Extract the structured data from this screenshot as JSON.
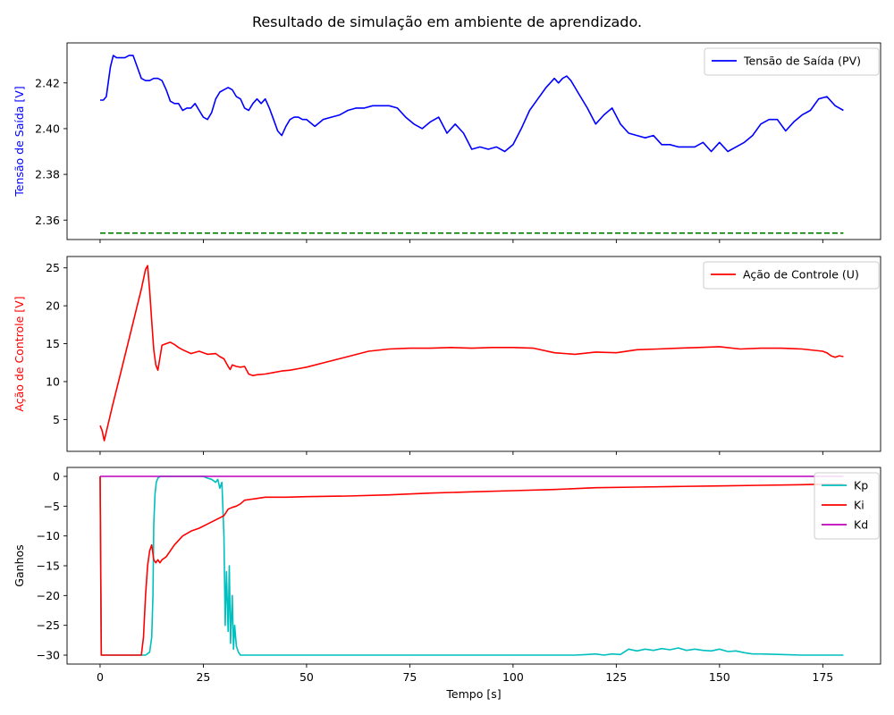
{
  "title": "Resultado de simulação em ambiente de aprendizado.",
  "chart_data": [
    {
      "type": "line",
      "xlabel": "",
      "ylabel": "Tensão de Saída [V]",
      "ylabel_color": "#0000ff",
      "xlim": [
        -8,
        189
      ],
      "ylim": [
        2.3515,
        2.4375
      ],
      "xticks": [
        0,
        25,
        50,
        75,
        100,
        125,
        150,
        175
      ],
      "xtick_labels_visible": false,
      "yticks": [
        2.36,
        2.38,
        2.4,
        2.42
      ],
      "ytick_labels": [
        "2.36",
        "2.38",
        "2.40",
        "2.42"
      ],
      "legend_position": "top-right",
      "series": [
        {
          "name": "Tensão de Saída (PV)",
          "color": "#0000ff",
          "dash": "solid",
          "in_legend": true,
          "x": [
            0,
            0.8,
            1.5,
            2.5,
            3.2,
            4,
            5,
            6,
            7,
            8,
            9,
            10,
            11,
            12,
            13,
            14,
            15,
            16,
            17,
            18,
            19,
            20,
            21,
            22,
            23,
            24,
            25,
            26,
            27,
            28,
            29,
            30,
            31,
            32,
            33,
            34,
            35,
            36,
            37,
            38,
            39,
            40,
            41,
            42,
            43,
            44,
            45,
            46,
            47,
            48,
            49,
            50,
            52,
            54,
            56,
            58,
            60,
            62,
            64,
            66,
            68,
            70,
            72,
            74,
            76,
            78,
            80,
            82,
            84,
            86,
            88,
            90,
            92,
            94,
            96,
            98,
            100,
            102,
            104,
            106,
            108,
            110,
            111,
            112,
            113,
            114,
            115,
            116,
            118,
            120,
            122,
            124,
            126,
            128,
            130,
            132,
            134,
            136,
            138,
            140,
            142,
            144,
            146,
            148,
            150,
            152,
            154,
            156,
            158,
            160,
            162,
            164,
            166,
            168,
            170,
            172,
            174,
            176,
            178,
            180
          ],
          "y": [
            2.4125,
            2.4125,
            2.414,
            2.427,
            2.432,
            2.431,
            2.431,
            2.431,
            2.432,
            2.432,
            2.427,
            2.422,
            2.421,
            2.421,
            2.422,
            2.422,
            2.421,
            2.417,
            2.412,
            2.411,
            2.411,
            2.408,
            2.409,
            2.409,
            2.411,
            2.408,
            2.405,
            2.404,
            2.407,
            2.413,
            2.416,
            2.417,
            2.418,
            2.417,
            2.414,
            2.413,
            2.409,
            2.408,
            2.411,
            2.413,
            2.411,
            2.413,
            2.409,
            2.404,
            2.399,
            2.397,
            2.401,
            2.404,
            2.405,
            2.405,
            2.404,
            2.404,
            2.401,
            2.404,
            2.405,
            2.406,
            2.408,
            2.409,
            2.409,
            2.41,
            2.41,
            2.41,
            2.409,
            2.405,
            2.402,
            2.4,
            2.403,
            2.405,
            2.398,
            2.402,
            2.398,
            2.391,
            2.392,
            2.391,
            2.392,
            2.39,
            2.393,
            2.4,
            2.408,
            2.413,
            2.418,
            2.422,
            2.42,
            2.422,
            2.423,
            2.421,
            2.418,
            2.415,
            2.409,
            2.402,
            2.406,
            2.409,
            2.402,
            2.398,
            2.397,
            2.396,
            2.397,
            2.393,
            2.393,
            2.392,
            2.392,
            2.392,
            2.394,
            2.39,
            2.394,
            2.39,
            2.392,
            2.394,
            2.397,
            2.402,
            2.404,
            2.404,
            2.399,
            2.403,
            2.406,
            2.408,
            2.413,
            2.414,
            2.41,
            2.408
          ]
        },
        {
          "name": "",
          "color": "#008000",
          "dash": "dashed",
          "in_legend": false,
          "x": [
            0,
            180
          ],
          "y": [
            2.3543,
            2.3543
          ]
        }
      ]
    },
    {
      "type": "line",
      "xlabel": "",
      "ylabel": "Ação de Controle [V]",
      "ylabel_color": "#ff0000",
      "xlim": [
        -8,
        189
      ],
      "ylim": [
        0.8,
        26.5
      ],
      "xticks": [
        0,
        25,
        50,
        75,
        100,
        125,
        150,
        175
      ],
      "xtick_labels_visible": false,
      "yticks": [
        5,
        10,
        15,
        20,
        25
      ],
      "ytick_labels": [
        "5",
        "10",
        "15",
        "20",
        "25"
      ],
      "legend_position": "top-right",
      "series": [
        {
          "name": "Ação de Controle (U)",
          "color": "#ff0000",
          "dash": "solid",
          "in_legend": true,
          "x": [
            0,
            0.5,
            1,
            3,
            5,
            7,
            9,
            10,
            11,
            11.5,
            12,
            12.5,
            13,
            13.5,
            14,
            15,
            16,
            17,
            18,
            19,
            20,
            22,
            24,
            26,
            28,
            29,
            30,
            31,
            31.5,
            32,
            33,
            34,
            35,
            36,
            37,
            38,
            40,
            42,
            44,
            46,
            48,
            50,
            55,
            60,
            65,
            70,
            75,
            80,
            85,
            90,
            95,
            100,
            105,
            110,
            115,
            120,
            125,
            130,
            135,
            140,
            145,
            150,
            155,
            160,
            165,
            170,
            175,
            176,
            177,
            178,
            179,
            180
          ],
          "y": [
            4.2,
            3.5,
            2.2,
            6.8,
            11.2,
            15.6,
            20.0,
            22.2,
            24.8,
            25.3,
            22.0,
            18.0,
            14.2,
            12.2,
            11.5,
            14.8,
            15.0,
            15.2,
            14.9,
            14.5,
            14.2,
            13.7,
            14.0,
            13.6,
            13.7,
            13.3,
            13.0,
            12.0,
            11.6,
            12.2,
            12.0,
            11.9,
            12.0,
            11.0,
            10.8,
            10.9,
            11.0,
            11.2,
            11.4,
            11.5,
            11.7,
            11.9,
            12.6,
            13.3,
            14.0,
            14.3,
            14.4,
            14.4,
            14.5,
            14.4,
            14.5,
            14.5,
            14.4,
            13.8,
            13.6,
            13.9,
            13.8,
            14.2,
            14.3,
            14.4,
            14.5,
            14.6,
            14.3,
            14.4,
            14.4,
            14.3,
            14.0,
            13.8,
            13.4,
            13.2,
            13.4,
            13.3
          ]
        }
      ]
    },
    {
      "type": "line",
      "xlabel": "Tempo [s]",
      "ylabel": "Ganhos",
      "ylabel_color": "#000000",
      "xlim": [
        -8,
        189
      ],
      "ylim": [
        -31.5,
        1.5
      ],
      "xticks": [
        0,
        25,
        50,
        75,
        100,
        125,
        150,
        175
      ],
      "xtick_labels": [
        "0",
        "25",
        "50",
        "75",
        "100",
        "125",
        "150",
        "175"
      ],
      "xtick_labels_visible": true,
      "yticks": [
        -30,
        -25,
        -20,
        -15,
        -10,
        -5,
        0
      ],
      "ytick_labels": [
        "−30",
        "−25",
        "−20",
        "−15",
        "−10",
        "−5",
        "0"
      ],
      "legend_position": "top-right",
      "series": [
        {
          "name": "Kp",
          "color": "#00bfbf",
          "dash": "solid",
          "in_legend": true,
          "x": [
            0,
            0.3,
            0.6,
            5,
            10,
            11,
            12,
            12.5,
            12.8,
            13,
            13.3,
            13.6,
            14,
            14.5,
            15,
            20,
            25,
            26,
            27,
            28,
            28.5,
            29,
            29.5,
            30,
            30.3,
            30.6,
            31,
            31.3,
            31.6,
            32,
            32.3,
            32.6,
            33,
            33.5,
            34,
            35,
            40,
            60,
            80,
            100,
            115,
            118,
            120,
            122,
            124,
            126,
            128,
            130,
            132,
            134,
            136,
            138,
            140,
            142,
            144,
            146,
            148,
            150,
            152,
            154,
            156,
            158,
            160,
            165,
            170,
            175,
            180
          ],
          "y": [
            0,
            -30,
            -30,
            -30,
            -30,
            -30,
            -29.5,
            -27,
            -20,
            -8,
            -3,
            -1,
            -0.3,
            0,
            0,
            0,
            0,
            -0.3,
            -0.5,
            -1.0,
            -0.5,
            -2.0,
            -1.0,
            -10.0,
            -25.0,
            -16.0,
            -26.0,
            -15.0,
            -28.0,
            -20.0,
            -29.0,
            -25.0,
            -28.5,
            -29.5,
            -30,
            -30,
            -30,
            -30,
            -30,
            -30,
            -30,
            -29.9,
            -29.8,
            -30,
            -29.8,
            -29.9,
            -29.0,
            -29.3,
            -29.0,
            -29.2,
            -28.9,
            -29.1,
            -28.8,
            -29.2,
            -29.0,
            -29.2,
            -29.3,
            -29.0,
            -29.4,
            -29.3,
            -29.6,
            -29.8,
            -29.8,
            -29.9,
            -30,
            -30,
            -30
          ]
        },
        {
          "name": "Ki",
          "color": "#ff0000",
          "dash": "solid",
          "in_legend": true,
          "x": [
            0,
            0.3,
            0.6,
            5,
            10,
            10.5,
            11,
            11.5,
            12,
            12.5,
            13,
            13.5,
            14,
            14.5,
            15,
            16,
            17,
            18,
            20,
            22,
            24,
            26,
            28,
            30,
            31,
            32,
            33,
            34,
            35,
            36,
            38,
            40,
            45,
            50,
            60,
            70,
            80,
            90,
            100,
            110,
            120,
            130,
            140,
            150,
            160,
            170,
            175,
            180
          ],
          "y": [
            0,
            -30,
            -30,
            -30,
            -30,
            -27,
            -20,
            -15,
            -12.5,
            -11.5,
            -14,
            -14.5,
            -14.0,
            -14.5,
            -14.0,
            -13.5,
            -12.5,
            -11.5,
            -10.0,
            -9.2,
            -8.7,
            -8.0,
            -7.3,
            -6.6,
            -5.5,
            -5.2,
            -5.0,
            -4.6,
            -4.0,
            -3.9,
            -3.7,
            -3.5,
            -3.5,
            -3.4,
            -3.3,
            -3.1,
            -2.8,
            -2.6,
            -2.4,
            -2.2,
            -1.9,
            -1.8,
            -1.7,
            -1.6,
            -1.5,
            -1.4,
            -1.3,
            -1.3
          ]
        },
        {
          "name": "Kd",
          "color": "#bf00bf",
          "dash": "solid",
          "in_legend": true,
          "x": [
            0,
            180
          ],
          "y": [
            0,
            0
          ]
        }
      ]
    }
  ]
}
